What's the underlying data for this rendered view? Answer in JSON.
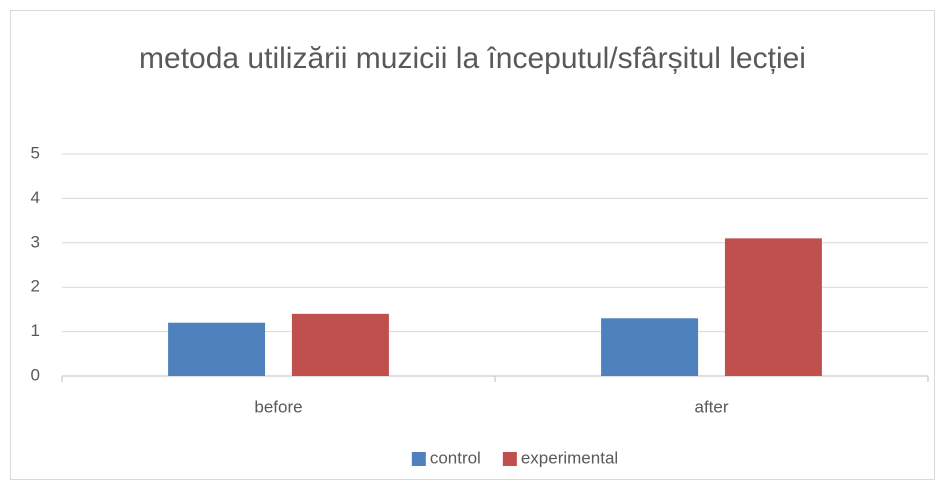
{
  "chart_data": {
    "type": "bar",
    "title": "metoda utilizării muzicii la începutul/sfârșitul lecției",
    "categories": [
      "before",
      "after"
    ],
    "series": [
      {
        "name": "control",
        "color": "#4f81bd",
        "values": [
          1.2,
          1.3
        ]
      },
      {
        "name": "experimental",
        "color": "#c0504d",
        "values": [
          1.4,
          3.1
        ]
      }
    ],
    "ylim": [
      0,
      5
    ],
    "yticks": [
      0,
      1,
      2,
      3,
      4,
      5
    ],
    "grid": true,
    "legend": "bottom"
  }
}
